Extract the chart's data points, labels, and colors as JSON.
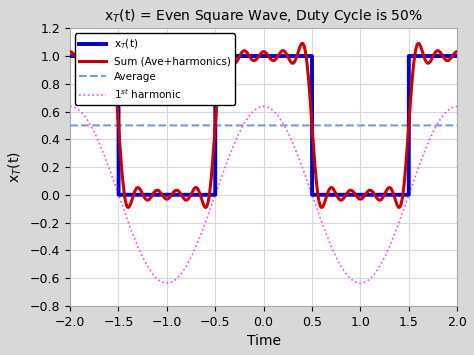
{
  "title": "x$_T$(t) = Even Square Wave, Duty Cycle is 50%",
  "xlabel": "Time",
  "ylabel": "x$_T$(t)",
  "xlim": [
    -2,
    2
  ],
  "ylim": [
    -0.8,
    1.2
  ],
  "xticks": [
    -2,
    -1.5,
    -1,
    -0.5,
    0,
    0.5,
    1,
    1.5,
    2
  ],
  "yticks": [
    -0.8,
    -0.6,
    -0.4,
    -0.2,
    0,
    0.2,
    0.4,
    0.6,
    0.8,
    1.0,
    1.2
  ],
  "average": 0.5,
  "period": 2.0,
  "duty_cycle": 0.5,
  "n_harmonics": 9,
  "square_color": "#0000cc",
  "sum_color": "#cc0000",
  "average_color": "#7799dd",
  "harmonic_color": "#ff44ff",
  "square_lw": 2.8,
  "sum_lw": 2.2,
  "average_lw": 1.5,
  "harmonic_lw": 1.2,
  "bg_color": "#d8d8d8",
  "legend_labels": [
    "x$_T$(t)",
    "Sum (Ave+harmonics)",
    "Average",
    "1$^{st}$ harmonic"
  ],
  "title_fontsize": 10,
  "label_fontsize": 10,
  "tick_fontsize": 9
}
